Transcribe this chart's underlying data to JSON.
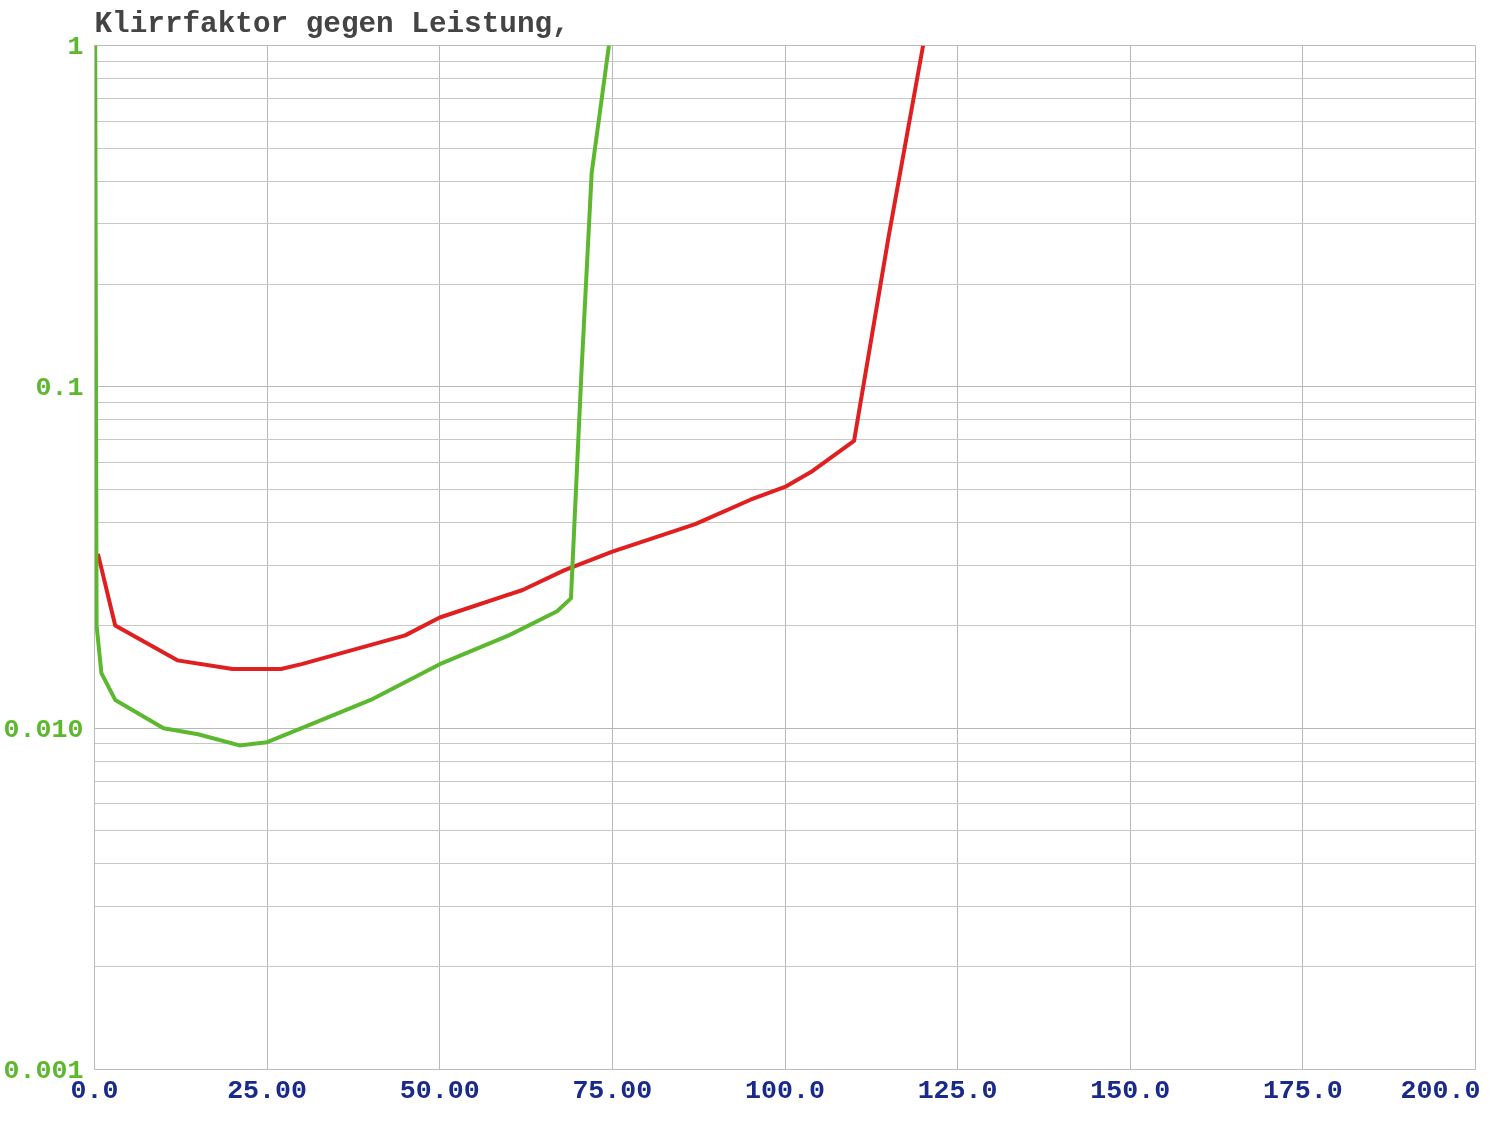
{
  "chart_data": {
    "type": "line",
    "title": "Klirrfaktor gegen Leistung,",
    "log": "y",
    "grid": true,
    "line_style": "solid",
    "xlim": [
      0,
      200
    ],
    "ylim": [
      0.001,
      1
    ],
    "xticks": [
      {
        "value": 0,
        "label": "0.0"
      },
      {
        "value": 25,
        "label": "25.00"
      },
      {
        "value": 50,
        "label": "50.00"
      },
      {
        "value": 75,
        "label": "75.00"
      },
      {
        "value": 100,
        "label": "100.0"
      },
      {
        "value": 125,
        "label": "125.0"
      },
      {
        "value": 150,
        "label": "150.0"
      },
      {
        "value": 175,
        "label": "175.0"
      },
      {
        "value": 200,
        "label": "200.0"
      }
    ],
    "yticks": [
      {
        "value": 0.001,
        "label": "0.001"
      },
      {
        "value": 0.01,
        "label": "0.010"
      },
      {
        "value": 0.1,
        "label": "0.1"
      },
      1
    ],
    "series": [
      {
        "color": "#e02020",
        "x": [
          0.5,
          3,
          12,
          20,
          27,
          30,
          45,
          50,
          62,
          68,
          75,
          87,
          95,
          100,
          104,
          110,
          115,
          120
        ],
        "values": [
          0.0324,
          0.02,
          0.0158,
          0.0149,
          0.0149,
          0.0154,
          0.0187,
          0.0211,
          0.0254,
          0.029,
          0.0329,
          0.0396,
          0.0467,
          0.0509,
          0.0567,
          0.0694,
          0.275,
          1.0
        ]
      },
      {
        "color": "#5cb82e",
        "x": [
          0.1,
          0.3,
          1,
          3,
          10,
          15,
          21,
          25,
          30,
          40,
          50,
          60,
          67,
          69,
          70.5,
          72,
          74.5
        ],
        "values": [
          1.0,
          0.02,
          0.0145,
          0.0121,
          0.01,
          0.0096,
          0.0089,
          0.0091,
          0.01,
          0.0121,
          0.0154,
          0.0187,
          0.022,
          0.024,
          0.108,
          0.423,
          1.0
        ]
      }
    ]
  }
}
